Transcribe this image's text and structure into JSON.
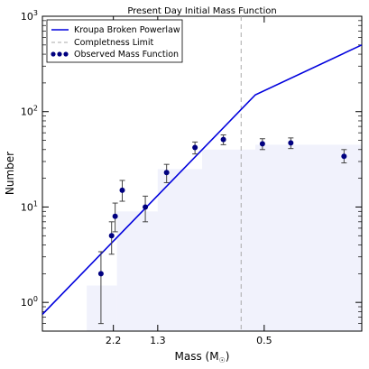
{
  "chart_data": {
    "type": "scatter",
    "title": "Present Day Initial Mass Function",
    "xlabel": "Mass (M",
    "xlabel_sub": "☉",
    "xlabel_close": ")",
    "ylabel": "Number",
    "y_scale": "log",
    "ylim": [
      0.5,
      1000
    ],
    "x_ticks": [
      {
        "label": "2.2",
        "x": 0.2
      },
      {
        "label": "1.3",
        "x": 0.45
      },
      {
        "label": "0.5",
        "x": 1.05
      }
    ],
    "x_range": [
      -0.2,
      1.6
    ],
    "y_ticks": [
      {
        "base": "10",
        "exp": "0",
        "value": 1
      },
      {
        "base": "10",
        "exp": "1",
        "value": 10
      },
      {
        "base": "10",
        "exp": "2",
        "value": 100
      },
      {
        "base": "10",
        "exp": "3",
        "value": 1000
      }
    ],
    "legend": {
      "placement": "top-left",
      "items": [
        {
          "label": "Kroupa Broken Powerlaw",
          "kind": "line",
          "color": "#0000dd"
        },
        {
          "label": "Completness Limit",
          "kind": "dashed",
          "color": "#aaaaaa"
        },
        {
          "label": "Observed Mass Function",
          "kind": "points",
          "color": "#000080"
        }
      ]
    },
    "completeness_limit_x": 0.92,
    "kroupa_line": {
      "name": "Kroupa Broken Powerlaw",
      "color": "#0000dd",
      "points": [
        {
          "x": -0.2,
          "y": 0.75
        },
        {
          "x": 1.0,
          "y": 150
        },
        {
          "x": 1.6,
          "y": 500
        }
      ]
    },
    "series": [
      {
        "name": "Observed Mass Function",
        "color": "#000080",
        "points": [
          {
            "x": 0.13,
            "y": 2,
            "lo": 0.6,
            "hi": 3.4
          },
          {
            "x": 0.19,
            "y": 5,
            "lo": 3.2,
            "hi": 7
          },
          {
            "x": 0.21,
            "y": 8,
            "lo": 5.5,
            "hi": 11
          },
          {
            "x": 0.25,
            "y": 15,
            "lo": 11.5,
            "hi": 19
          },
          {
            "x": 0.38,
            "y": 10,
            "lo": 7,
            "hi": 13
          },
          {
            "x": 0.5,
            "y": 23,
            "lo": 18,
            "hi": 28
          },
          {
            "x": 0.66,
            "y": 42,
            "lo": 36,
            "hi": 48
          },
          {
            "x": 0.82,
            "y": 51,
            "lo": 45,
            "hi": 57
          },
          {
            "x": 1.04,
            "y": 46,
            "lo": 40,
            "hi": 52
          },
          {
            "x": 1.2,
            "y": 47,
            "lo": 41,
            "hi": 53
          },
          {
            "x": 1.5,
            "y": 34,
            "lo": 29,
            "hi": 40
          }
        ]
      }
    ],
    "background_shading": {
      "color": "#dfe2f9",
      "bars": [
        {
          "x0": 0.05,
          "x1": 0.22,
          "y": 1.5
        },
        {
          "x0": 0.22,
          "x1": 0.45,
          "y": 9
        },
        {
          "x0": 0.45,
          "x1": 0.7,
          "y": 25
        },
        {
          "x0": 0.7,
          "x1": 1.0,
          "y": 40
        },
        {
          "x0": 1.0,
          "x1": 1.6,
          "y": 45
        }
      ]
    }
  }
}
